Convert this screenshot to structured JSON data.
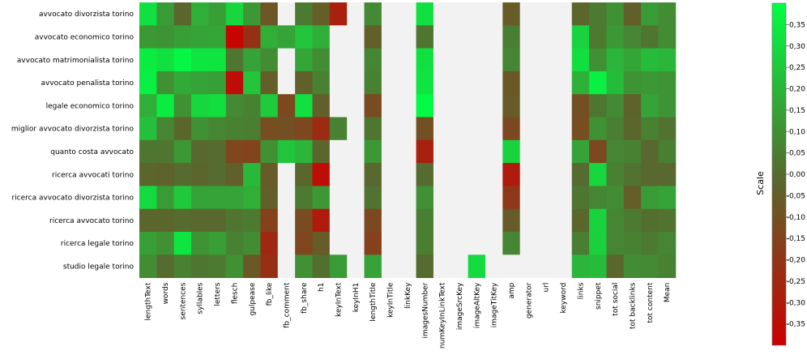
{
  "chart_data": {
    "type": "heatmap",
    "rows": [
      "avvocato divorzista torino",
      "avvocato economico torino",
      "avvocato matrimonialista torino",
      "avvocato penalista torino",
      "legale economico torino",
      "miglior avvocato divorzista torino",
      "quanto costa avvocato",
      "ricerca avvocati torino",
      "ricerca avvocato divorzista torino",
      "ricerca avvocato torino",
      "ricerca legale torino",
      "studio legale torino"
    ],
    "columns": [
      "lengthText",
      "words",
      "sentences",
      "syllables",
      "letters",
      "flesch",
      "gulpease",
      "fb_like",
      "fb_comment",
      "fb_share",
      "h1",
      "keyInText",
      "keyInH1",
      "lengthTitle",
      "keyInTitle",
      "linkKey",
      "imagesNumber",
      "numKeyInLinkText",
      "imageSrcKey",
      "imageAltKey",
      "imageTitKey",
      "amp",
      "generator",
      "url",
      "keyword",
      "links",
      "snippet",
      "tot social",
      "tot backlinks",
      "tot content",
      "Mean"
    ],
    "values": [
      [
        0.32,
        0.13,
        -0.02,
        0.18,
        0.14,
        0.29,
        0.12,
        -0.08,
        null,
        0.04,
        -0.05,
        -0.28,
        null,
        0.08,
        null,
        null,
        0.32,
        null,
        null,
        null,
        null,
        -0.06,
        null,
        null,
        null,
        -0.02,
        0.04,
        0.1,
        -0.04,
        0.13,
        0.09
      ],
      [
        0.12,
        0.11,
        0.14,
        0.15,
        0.16,
        -0.38,
        -0.22,
        0.18,
        0.15,
        0.24,
        0.18,
        null,
        null,
        -0.04,
        null,
        null,
        0.03,
        null,
        null,
        null,
        null,
        0.05,
        null,
        null,
        null,
        0.28,
        0.04,
        0.12,
        0.07,
        0.03,
        0.09
      ],
      [
        0.35,
        0.32,
        0.38,
        0.33,
        0.33,
        0.03,
        0.15,
        0.09,
        null,
        0.16,
        0.09,
        null,
        null,
        0.07,
        null,
        null,
        0.32,
        null,
        null,
        null,
        null,
        0.07,
        null,
        null,
        null,
        0.31,
        0.1,
        0.2,
        0.16,
        0.22,
        0.2
      ],
      [
        0.36,
        0.1,
        0.17,
        0.15,
        0.14,
        -0.35,
        0.24,
        -0.05,
        null,
        -0.04,
        0.06,
        null,
        null,
        0.06,
        null,
        null,
        0.33,
        null,
        null,
        null,
        null,
        -0.07,
        null,
        null,
        null,
        0.19,
        0.36,
        0.22,
        0.11,
        0.12,
        0.11
      ],
      [
        0.18,
        0.35,
        0.1,
        0.29,
        0.31,
        0.08,
        0.06,
        0.26,
        -0.13,
        0.32,
        -0.04,
        null,
        null,
        -0.12,
        null,
        null,
        0.39,
        null,
        null,
        null,
        null,
        -0.06,
        null,
        null,
        null,
        -0.1,
        0.03,
        0.08,
        -0.03,
        0.15,
        0.11
      ],
      [
        0.23,
        0.07,
        -0.02,
        0.1,
        0.07,
        0.06,
        0.05,
        -0.11,
        -0.1,
        -0.13,
        -0.24,
        0.06,
        null,
        0.03,
        null,
        null,
        -0.1,
        null,
        null,
        null,
        null,
        -0.13,
        null,
        null,
        null,
        -0.11,
        0.1,
        0.05,
        -0.02,
        0.06,
        0.02
      ],
      [
        0.03,
        0.03,
        0.12,
        -0.01,
        0.0,
        -0.14,
        -0.15,
        0.1,
        0.24,
        0.2,
        -0.02,
        null,
        null,
        0.12,
        null,
        null,
        -0.28,
        null,
        null,
        null,
        null,
        0.28,
        null,
        null,
        null,
        0.15,
        -0.13,
        0.07,
        0.06,
        -0.01,
        0.05
      ],
      [
        -0.02,
        -0.03,
        0.0,
        -0.02,
        0.0,
        -0.04,
        0.21,
        -0.06,
        null,
        -0.02,
        -0.35,
        null,
        null,
        -0.01,
        null,
        null,
        0.0,
        null,
        null,
        null,
        null,
        -0.3,
        null,
        null,
        null,
        0.0,
        0.29,
        0.06,
        0.02,
        -0.01,
        -0.01
      ],
      [
        0.3,
        0.13,
        0.25,
        0.15,
        0.15,
        0.15,
        0.18,
        -0.04,
        null,
        0.04,
        0.12,
        null,
        null,
        0.02,
        null,
        null,
        0.1,
        null,
        null,
        null,
        null,
        -0.19,
        null,
        null,
        null,
        0.03,
        0.07,
        0.09,
        -0.05,
        0.13,
        0.15
      ],
      [
        -0.02,
        -0.02,
        0.0,
        -0.01,
        -0.01,
        0.03,
        0.04,
        -0.16,
        null,
        -0.12,
        -0.3,
        null,
        null,
        -0.13,
        null,
        null,
        0.05,
        null,
        null,
        null,
        null,
        -0.06,
        null,
        null,
        null,
        -0.02,
        0.28,
        0.07,
        0.04,
        0.01,
        0.02
      ],
      [
        0.14,
        0.1,
        0.33,
        0.11,
        0.14,
        0.06,
        0.09,
        -0.25,
        null,
        -0.14,
        -0.06,
        null,
        null,
        -0.16,
        null,
        null,
        0.05,
        null,
        null,
        null,
        null,
        0.07,
        null,
        null,
        null,
        0.05,
        0.27,
        0.07,
        0.06,
        0.04,
        0.07
      ],
      [
        0.09,
        0.0,
        0.06,
        0.03,
        0.04,
        0.1,
        -0.07,
        -0.22,
        null,
        0.1,
        0.01,
        0.13,
        null,
        0.15,
        null,
        null,
        0.0,
        null,
        null,
        0.3,
        null,
        null,
        null,
        null,
        null,
        0.2,
        0.22,
        -0.02,
        0.09,
        0.08,
        0.06
      ]
    ],
    "scale": {
      "title": "Scale",
      "min": -0.4,
      "max": 0.4,
      "ticks": [
        "0,35",
        "0,30",
        "0,25",
        "0,20",
        "0,15",
        "0,10",
        "0,05",
        "0,00",
        "-0,05",
        "-0,10",
        "-0,15",
        "-0,20",
        "-0,25",
        "-0,30",
        "-0,35"
      ],
      "tick_values": [
        0.35,
        0.3,
        0.25,
        0.2,
        0.15,
        0.1,
        0.05,
        0.0,
        -0.05,
        -0.1,
        -0.15,
        -0.2,
        -0.25,
        -0.3,
        -0.35
      ]
    },
    "colors": {
      "low": "#cc0000",
      "mid": "#556b2f",
      "high": "#00ff44",
      "missing": "#f2f2f2"
    }
  }
}
